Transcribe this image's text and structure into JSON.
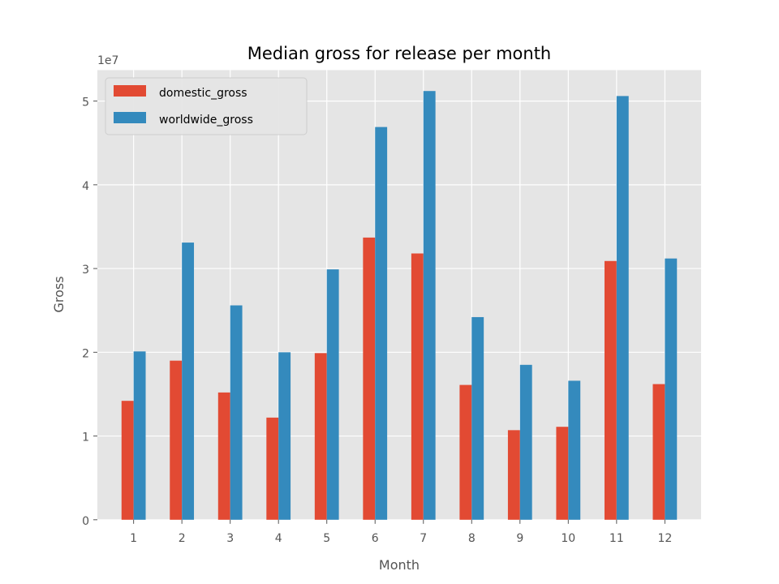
{
  "chart_data": {
    "type": "bar",
    "title": "Median gross for release per month",
    "xlabel": "Month",
    "ylabel": "Gross",
    "y_offset_label": "1e7",
    "categories": [
      "1",
      "2",
      "3",
      "4",
      "5",
      "6",
      "7",
      "8",
      "9",
      "10",
      "11",
      "12"
    ],
    "series": [
      {
        "name": "domestic_gross",
        "color": "#E24A33",
        "values": [
          14200000,
          19000000,
          15200000,
          12200000,
          19900000,
          33700000,
          31800000,
          16100000,
          10700000,
          11100000,
          30900000,
          16200000
        ]
      },
      {
        "name": "worldwide_gross",
        "color": "#348ABD",
        "values": [
          20100000,
          33100000,
          25600000,
          20000000,
          29900000,
          46900000,
          51200000,
          24200000,
          18500000,
          16600000,
          50600000,
          31200000
        ]
      }
    ],
    "ylim": [
      0,
      53700000
    ],
    "y_ticks": [
      0,
      10000000,
      20000000,
      30000000,
      40000000,
      50000000
    ],
    "y_tick_labels": [
      "0",
      "1",
      "2",
      "3",
      "4",
      "5"
    ],
    "grid": true,
    "legend_position": "top-left",
    "style": "ggplot",
    "background_color": "#E5E5E5",
    "grid_color": "#FFFFFF"
  }
}
